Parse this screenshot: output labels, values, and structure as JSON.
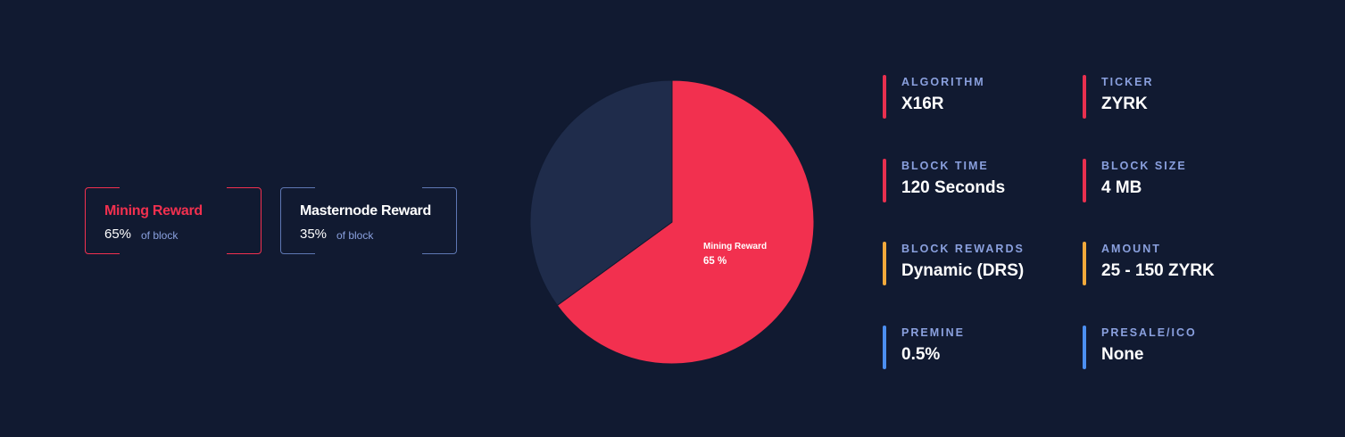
{
  "legend": [
    {
      "title": "Mining Reward",
      "value": "65%",
      "sub": "of block",
      "color": "#f2304f"
    },
    {
      "title": "Masternode Reward",
      "value": "35%",
      "sub": "of block",
      "color": "#5e77b3"
    }
  ],
  "chart_data": {
    "type": "pie",
    "slices": [
      {
        "label": "Mining Reward",
        "value": 65,
        "color": "#f2304f"
      },
      {
        "label": "Masternode Reward",
        "value": 35,
        "color": "#1f2c4b"
      }
    ],
    "annotation": {
      "label": "Mining Reward",
      "value_text": "65 %"
    }
  },
  "stats": [
    {
      "label": "ALGORITHM",
      "value": "X16R",
      "color": "#e8304f"
    },
    {
      "label": "TICKER",
      "value": "ZYRK",
      "color": "#e8304f"
    },
    {
      "label": "BLOCK TIME",
      "value": "120 Seconds",
      "color": "#e8304f"
    },
    {
      "label": "BLOCK SIZE",
      "value": "4 MB",
      "color": "#e8304f"
    },
    {
      "label": "BLOCK REWARDS",
      "value": "Dynamic (DRS)",
      "color": "#f2a93b"
    },
    {
      "label": "AMOUNT",
      "value": "25 - 150 ZYRK",
      "color": "#f2a93b"
    },
    {
      "label": "PREMINE",
      "value": "0.5%",
      "color": "#4c8ff0"
    },
    {
      "label": "PRESALE/ICO",
      "value": "None",
      "color": "#4c8ff0"
    }
  ]
}
